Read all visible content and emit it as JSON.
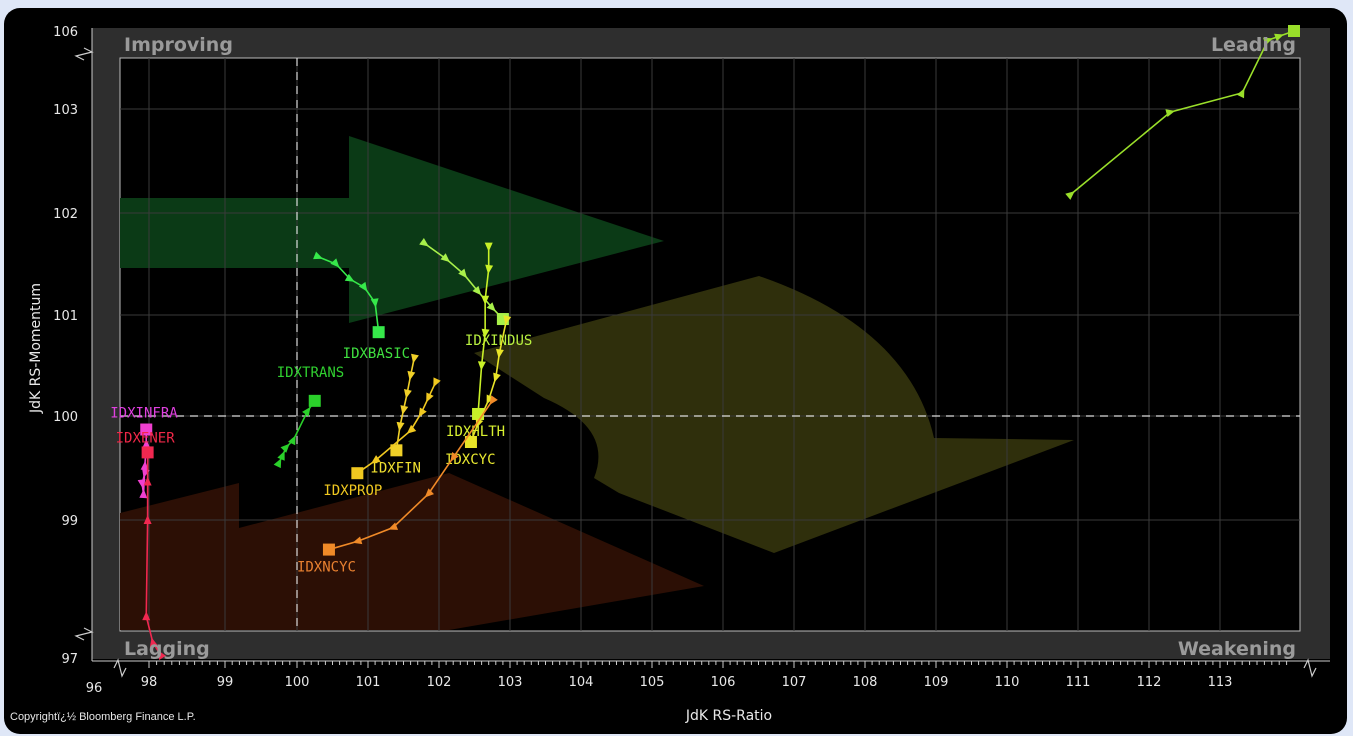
{
  "chart_data": {
    "type": "scatter",
    "subtype": "relative-rotation-graph",
    "xlabel": "JdK RS-Ratio",
    "ylabel": "JdK RS-Momentum",
    "x_ticks": [
      96,
      98,
      99,
      100,
      101,
      102,
      103,
      104,
      105,
      106,
      107,
      108,
      109,
      110,
      111,
      112,
      113
    ],
    "y_ticks": [
      97,
      99,
      100,
      101,
      102,
      103,
      106
    ],
    "x_center": 100,
    "y_center": 100,
    "quadrants": {
      "top_left": "Improving",
      "top_right": "Leading",
      "bottom_left": "Lagging",
      "bottom_right": "Weakening"
    },
    "grid": true,
    "copyright": "Copyrightï¿½ Bloomberg Finance L.P.",
    "series": [
      {
        "name": "IDXBASIC",
        "color": "#36e84a",
        "points": [
          [
            100.3,
            101.57
          ],
          [
            100.55,
            101.5
          ],
          [
            100.75,
            101.35
          ],
          [
            100.95,
            101.27
          ],
          [
            101.1,
            101.12
          ],
          [
            101.15,
            100.83
          ]
        ]
      },
      {
        "name": "IDXINDUS",
        "color": "#a8f04a",
        "points": [
          [
            101.8,
            101.7
          ],
          [
            102.1,
            101.55
          ],
          [
            102.35,
            101.4
          ],
          [
            102.55,
            101.23
          ],
          [
            102.75,
            101.07
          ],
          [
            102.9,
            100.96
          ]
        ]
      },
      {
        "name": "IDXTRANS",
        "color": "#2ad02a",
        "points": [
          [
            99.75,
            99.55
          ],
          [
            99.8,
            99.62
          ],
          [
            99.85,
            99.7
          ],
          [
            99.95,
            99.77
          ],
          [
            100.15,
            100.05
          ],
          [
            100.25,
            100.15
          ]
        ]
      },
      {
        "name": "IDXHLTH",
        "color": "#c8f028",
        "points": [
          [
            102.7,
            101.67
          ],
          [
            102.7,
            101.45
          ],
          [
            102.65,
            101.15
          ],
          [
            102.65,
            100.82
          ],
          [
            102.6,
            100.5
          ],
          [
            102.55,
            100.02
          ]
        ]
      },
      {
        "name": "IDXFIN",
        "color": "#f0d028",
        "points": [
          [
            101.65,
            100.57
          ],
          [
            101.6,
            100.4
          ],
          [
            101.55,
            100.22
          ],
          [
            101.5,
            100.06
          ],
          [
            101.45,
            99.9
          ],
          [
            101.4,
            99.67
          ]
        ]
      },
      {
        "name": "IDXPROP",
        "color": "#f0c820",
        "points": [
          [
            101.95,
            100.33
          ],
          [
            101.85,
            100.18
          ],
          [
            101.75,
            100.03
          ],
          [
            101.6,
            99.86
          ],
          [
            101.1,
            99.57
          ],
          [
            100.85,
            99.45
          ]
        ]
      },
      {
        "name": "IDXCYC",
        "color": "#e8e428",
        "points": [
          [
            102.95,
            100.95
          ],
          [
            102.85,
            100.62
          ],
          [
            102.8,
            100.38
          ],
          [
            102.7,
            100.16
          ],
          [
            102.55,
            99.93
          ],
          [
            102.45,
            99.75
          ]
        ]
      },
      {
        "name": "IDXNCYC",
        "color": "#f08a28",
        "points": [
          [
            102.75,
            100.15
          ],
          [
            102.2,
            99.6
          ],
          [
            101.85,
            99.25
          ],
          [
            101.35,
            98.85
          ],
          [
            100.85,
            98.58
          ],
          [
            100.45,
            98.42
          ]
        ]
      },
      {
        "name": "IDXINFRA",
        "color": "#f040d0",
        "points": [
          [
            97.85,
            99.45
          ],
          [
            97.75,
            99.35
          ],
          [
            97.8,
            99.25
          ],
          [
            97.85,
            99.52
          ],
          [
            97.9,
            99.73
          ],
          [
            97.9,
            99.87
          ]
        ]
      },
      {
        "name": "IDXENER",
        "color": "#f02850",
        "points": [
          [
            98.15,
            97.04
          ],
          [
            98.05,
            97.18
          ],
          [
            97.9,
            97.48
          ],
          [
            97.95,
            99.0
          ],
          [
            97.95,
            99.37
          ],
          [
            97.95,
            99.65
          ]
        ]
      },
      {
        "name": "",
        "color": "#9adf2a",
        "points": [
          [
            110.9,
            102.18
          ],
          [
            112.3,
            102.97
          ],
          [
            113.3,
            103.62
          ],
          [
            113.65,
            105.65
          ],
          [
            113.8,
            105.8
          ],
          [
            114.05,
            106.0
          ]
        ]
      }
    ]
  }
}
